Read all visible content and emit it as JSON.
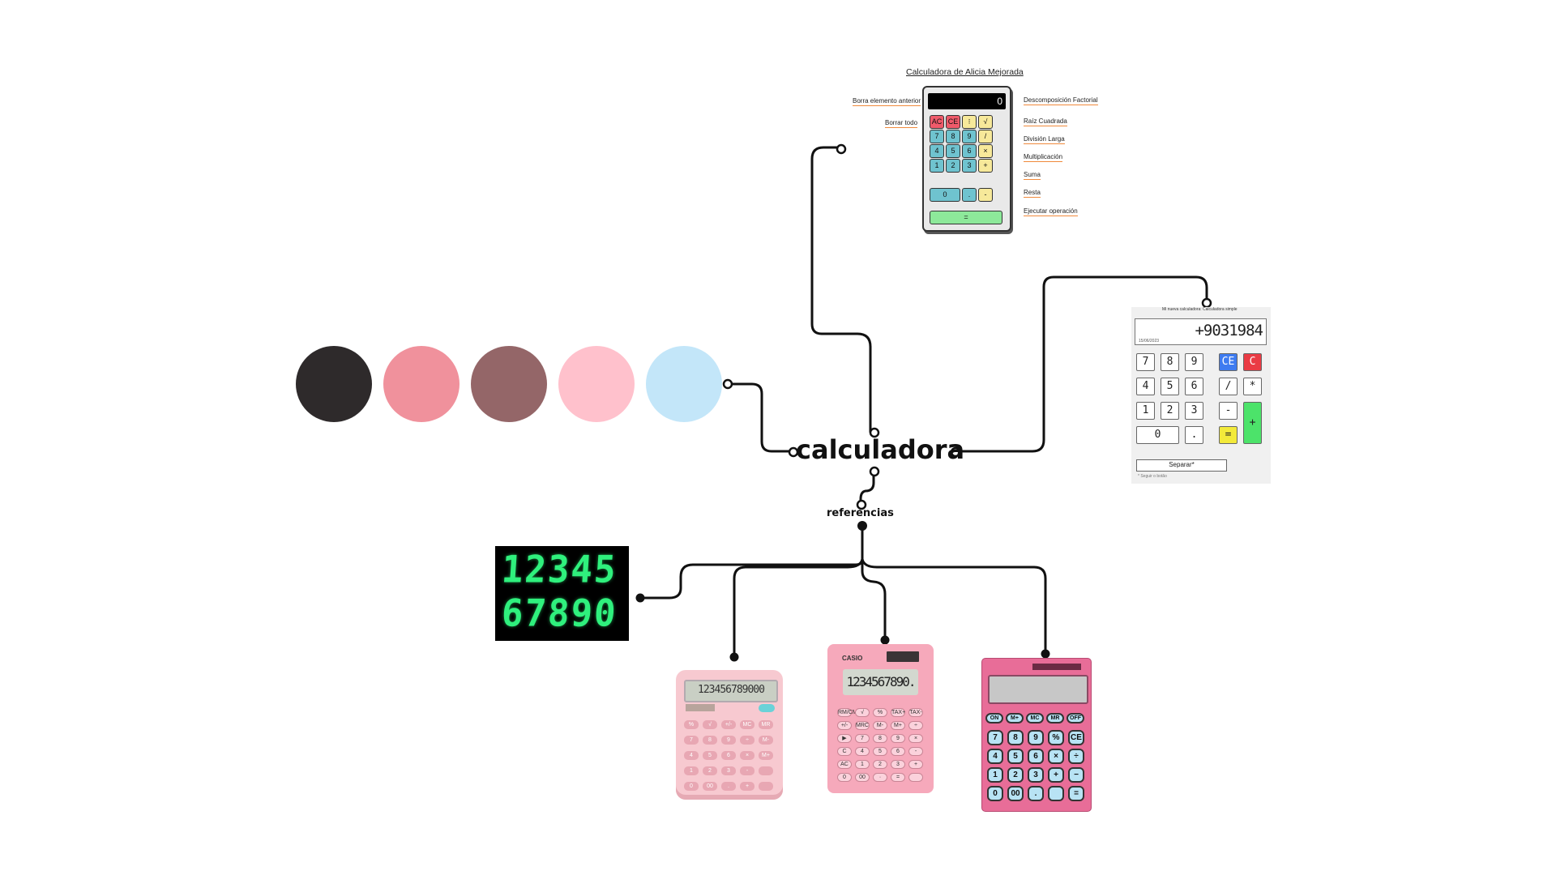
{
  "central_label": "calculadora",
  "sub_label": "referencias",
  "palette": [
    "#2e2a2b",
    "#f0919c",
    "#946668",
    "#ffc1cc",
    "#c3e6f9"
  ],
  "reference_calc": {
    "title": "Calculadora de Alicia Mejorada",
    "display": "0",
    "keys": [
      "AC",
      "CE",
      "⁝",
      "√",
      "7",
      "8",
      "9",
      "/",
      "4",
      "5",
      "6",
      "×",
      "1",
      "2",
      "3",
      "+",
      "0",
      ".",
      "-",
      "="
    ],
    "annotations_left": [
      "Borra elemento anterior",
      "Borrar todo"
    ],
    "annotations_right": [
      "Descomposición Factorial",
      "Raíz Cuadrada",
      "División Larga",
      "Multiplicación",
      "Suma",
      "Resta",
      "Ejecutar operación"
    ]
  },
  "screenshot_calc": {
    "title": "Mi nueva calculadora: Calculadora simple",
    "value": "+9031984",
    "date": "15/06/2023",
    "keys": [
      "7",
      "8",
      "9",
      "CE",
      "C",
      "4",
      "5",
      "6",
      "/",
      "*",
      "1",
      "2",
      "3",
      "-",
      "0",
      ".",
      "=",
      "+"
    ],
    "separate_label": "Separar*",
    "hint": "* Seguir o botão"
  },
  "digital_display": {
    "row1": "12345",
    "row2": "67890"
  },
  "pink_calc_1": {
    "display": "123456789000",
    "keys": [
      "%",
      "√",
      "+/-",
      "MC",
      "MR",
      "7",
      "8",
      "9",
      "÷",
      "M-",
      "4",
      "5",
      "6",
      "×",
      "M+",
      "1",
      "2",
      "3",
      "-",
      "",
      "0",
      "00",
      ".",
      "+",
      ""
    ]
  },
  "pink_calc_2": {
    "brand": "CASIO",
    "display": "1234567890.",
    "keys": [
      "RM/CM",
      "√",
      "%",
      "TAX+",
      "TAX-",
      "+/-",
      "MRC",
      "M-",
      "M+",
      "÷",
      "▶",
      "7",
      "8",
      "9",
      "×",
      "C",
      "4",
      "5",
      "6",
      "-",
      "AC",
      "1",
      "2",
      "3",
      "+",
      "0",
      "00",
      "·",
      "=",
      ""
    ]
  },
  "pink_calc_3": {
    "top_keys": [
      "ON",
      "M+",
      "MC",
      "MR",
      "OFF"
    ],
    "keys": [
      "7",
      "8",
      "9",
      "%",
      "CE",
      "4",
      "5",
      "6",
      "×",
      "÷",
      "1",
      "2",
      "3",
      "+",
      "−",
      "0",
      "00",
      ".",
      "",
      "="
    ]
  }
}
